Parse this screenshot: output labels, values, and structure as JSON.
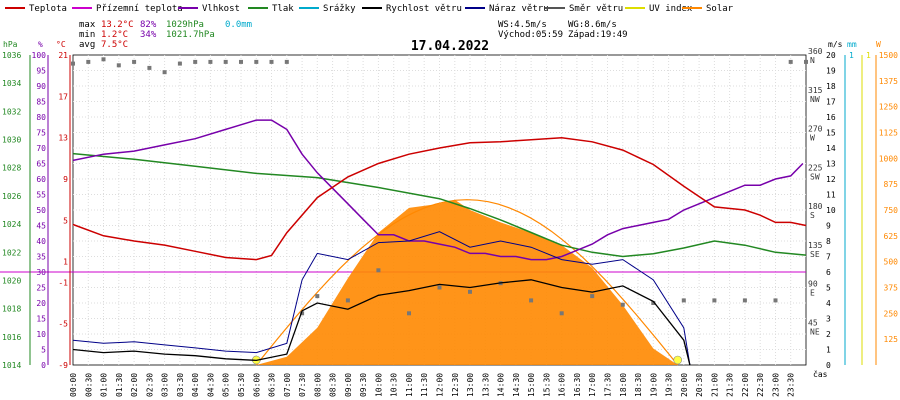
{
  "chart_data": {
    "type": "line",
    "title": "17.04.2022",
    "xlabel": "čas",
    "legend_placement": "top",
    "grid": true,
    "legend": [
      {
        "label": "Teplota",
        "color": "#cc0000"
      },
      {
        "label": "Přízemní teplota",
        "color": "#cc00cc"
      },
      {
        "label": "Vlhkost",
        "color": "#7700aa"
      },
      {
        "label": "Tlak",
        "color": "#228822"
      },
      {
        "label": "Srážky",
        "color": "#00aacc"
      },
      {
        "label": "Rychlost větru",
        "color": "#000000"
      },
      {
        "label": "Náraz větru",
        "color": "#000088"
      },
      {
        "label": "Směr větru",
        "color": "#555555"
      },
      {
        "label": "UV index",
        "color": "#dddd00"
      },
      {
        "label": "Solar",
        "color": "#ff8800"
      }
    ],
    "stats": {
      "max_label": "max",
      "max_temp": "13.2°C",
      "max_hum": "82%",
      "max_press": "1029hPa",
      "max_rain": "0.0mm",
      "min_label": "min",
      "min_temp": "1.2°C",
      "min_hum": "34%",
      "min_press": "1021.7hPa",
      "avg_label": "avg",
      "avg_temp": "7.5°C",
      "ws": "WS:4.5m/s",
      "wg": "WG:8.6m/s",
      "sunrise": "Východ:05:59",
      "sunset": "Západ:19:49"
    },
    "axes": {
      "hPa": {
        "title": "hPa",
        "range": [
          1014,
          1036
        ],
        "ticks": [
          "1036",
          "1034",
          "1032",
          "1030",
          "1028",
          "1026",
          "1024",
          "1022",
          "1020",
          "1018",
          "1016",
          "1014"
        ]
      },
      "percent": {
        "title": "%",
        "range": [
          0,
          100
        ],
        "ticks": [
          "100",
          "95",
          "90",
          "85",
          "80",
          "75",
          "70",
          "65",
          "60",
          "55",
          "50",
          "45",
          "40",
          "35",
          "30",
          "25",
          "20",
          "15",
          "10",
          "5",
          "0"
        ]
      },
      "celsius": {
        "title": "°C",
        "range": [
          -9,
          21
        ],
        "ticks": [
          "21",
          "17",
          "13",
          "9",
          "5",
          "1",
          "-1",
          "-5",
          "-9"
        ]
      },
      "ms": {
        "title": "m/s",
        "range": [
          0,
          20
        ],
        "ticks": [
          "20",
          "19",
          "18",
          "17",
          "16",
          "15",
          "14",
          "13",
          "12",
          "11",
          "10",
          "9",
          "8",
          "7",
          "6",
          "5",
          "4",
          "3",
          "2",
          "1",
          "0"
        ]
      },
      "direction": {
        "ticks": [
          {
            "value": "360",
            "label": "N"
          },
          {
            "value": "315",
            "label": "NW"
          },
          {
            "value": "270",
            "label": "W"
          },
          {
            "value": "225",
            "label": "SW"
          },
          {
            "value": "180",
            "label": "S"
          },
          {
            "value": "135",
            "label": "SE"
          },
          {
            "value": "90",
            "label": "E"
          },
          {
            "value": "45",
            "label": "NE"
          }
        ]
      },
      "mm": {
        "title": "mm",
        "top_label": "1"
      },
      "uv": {
        "top_label": "1"
      },
      "solar": {
        "title": "W",
        "range": [
          0,
          1500
        ],
        "ticks": [
          "1500",
          "1375",
          "1250",
          "1125",
          "1000",
          "875",
          "750",
          "625",
          "500",
          "375",
          "250",
          "125"
        ]
      }
    },
    "time_labels": [
      "00:00",
      "00:30",
      "01:00",
      "01:30",
      "02:00",
      "02:30",
      "03:00",
      "03:30",
      "04:00",
      "04:30",
      "05:00",
      "05:30",
      "06:00",
      "06:30",
      "07:00",
      "07:30",
      "08:00",
      "08:30",
      "09:00",
      "09:30",
      "10:00",
      "10:30",
      "11:00",
      "11:30",
      "12:00",
      "12:30",
      "13:00",
      "13:30",
      "14:00",
      "14:30",
      "15:00",
      "15:30",
      "16:00",
      "16:30",
      "17:00",
      "17:30",
      "18:00",
      "18:30",
      "19:00",
      "19:30",
      "20:00",
      "20:30",
      "21:00",
      "21:30",
      "22:00",
      "22:30",
      "23:00",
      "23:30"
    ],
    "series": [
      {
        "name": "Teplota",
        "unit": "°C",
        "color": "#cc0000",
        "x": [
          0,
          1,
          2,
          3,
          4,
          5,
          6,
          6.5,
          7,
          8,
          9,
          10,
          11,
          12,
          13,
          14,
          15,
          16,
          17,
          18,
          19,
          20,
          21,
          22,
          22.5,
          23,
          23.5,
          24
        ],
        "y": [
          4.6,
          3.5,
          3.0,
          2.6,
          2.0,
          1.4,
          1.2,
          1.6,
          3.8,
          7.2,
          9.2,
          10.5,
          11.4,
          12.0,
          12.5,
          12.6,
          12.8,
          13.0,
          12.6,
          11.8,
          10.4,
          8.3,
          6.3,
          6.0,
          5.5,
          4.8,
          4.8,
          4.5
        ]
      },
      {
        "name": "Vlhkost",
        "unit": "%",
        "color": "#7700aa",
        "x": [
          0,
          1,
          2,
          3,
          4,
          5,
          6,
          6.5,
          7,
          7.5,
          8,
          8.5,
          9,
          9.5,
          10,
          10.5,
          11,
          11.5,
          12,
          12.5,
          13,
          13.5,
          14,
          14.5,
          15,
          15.5,
          16,
          16.5,
          17,
          17.5,
          18,
          18.5,
          19,
          19.5,
          20,
          20.5,
          21,
          21.5,
          22,
          22.5,
          23,
          23.5,
          23.9
        ],
        "y": [
          66,
          68,
          69,
          71,
          73,
          76,
          79,
          79,
          76,
          68,
          62,
          57,
          52,
          47,
          42,
          42,
          40,
          40,
          39,
          38,
          36,
          36,
          35,
          35,
          34,
          34,
          35,
          37,
          39,
          42,
          44,
          45,
          46,
          47,
          50,
          52,
          54,
          56,
          58,
          58,
          60,
          61,
          65
        ]
      },
      {
        "name": "Tlak",
        "unit": "hPa",
        "color": "#228822",
        "x": [
          0,
          2,
          4,
          6,
          8,
          10,
          12,
          13,
          14,
          15,
          16,
          17,
          18,
          19,
          20,
          21,
          22,
          23,
          24
        ],
        "y": [
          1029.0,
          1028.6,
          1028.1,
          1027.6,
          1027.3,
          1026.6,
          1025.8,
          1025.1,
          1024.3,
          1023.4,
          1022.5,
          1022.0,
          1021.7,
          1021.9,
          1022.3,
          1022.8,
          1022.5,
          1022.0,
          1021.8
        ]
      },
      {
        "name": "Rychlost větru",
        "unit": "m/s",
        "color": "#000000",
        "x": [
          0,
          1,
          2,
          3,
          4,
          5,
          6,
          7,
          7.5,
          8,
          9,
          10,
          11,
          12,
          13,
          14,
          15,
          16,
          17,
          18,
          19,
          20,
          20.2
        ],
        "y": [
          1.0,
          0.8,
          0.9,
          0.7,
          0.6,
          0.4,
          0.3,
          0.7,
          3.5,
          4.0,
          3.6,
          4.5,
          4.8,
          5.2,
          5.0,
          5.3,
          5.5,
          5.0,
          4.7,
          5.1,
          4.1,
          1.6,
          0.0
        ]
      },
      {
        "name": "Náraz větru",
        "unit": "m/s",
        "color": "#000088",
        "x": [
          0,
          1,
          2,
          3,
          4,
          5,
          6,
          7,
          7.5,
          8,
          9,
          10,
          11,
          12,
          13,
          14,
          15,
          16,
          17,
          18,
          19,
          20,
          20.2
        ],
        "y": [
          1.6,
          1.4,
          1.5,
          1.3,
          1.1,
          0.9,
          0.8,
          1.4,
          5.5,
          7.2,
          6.8,
          7.9,
          8.0,
          8.6,
          7.6,
          8.0,
          7.6,
          6.8,
          6.5,
          6.8,
          5.5,
          2.4,
          0.0
        ]
      },
      {
        "name": "Solar",
        "unit": "W",
        "color": "#ff8800",
        "x": [
          6.0,
          7.0,
          8,
          9,
          10,
          11,
          12,
          12.5,
          13,
          14,
          15,
          16,
          17,
          18,
          19,
          19.8
        ],
        "y": [
          0,
          40,
          180,
          420,
          640,
          760,
          780,
          800,
          750,
          690,
          640,
          580,
          470,
          290,
          80,
          0
        ]
      },
      {
        "name": "Směr větru",
        "unit": "°",
        "color": "#555555",
        "x": [
          0,
          0.5,
          1,
          1.5,
          2,
          2.5,
          3,
          3.5,
          4,
          4.5,
          5,
          5.5,
          6,
          6.5,
          7,
          7.5,
          8,
          9,
          10,
          11,
          12,
          13,
          14,
          15,
          16,
          17,
          18,
          19,
          20,
          21,
          22,
          23,
          23.5,
          24
        ],
        "y": [
          350,
          352,
          355,
          348,
          352,
          345,
          340,
          350,
          352,
          352,
          352,
          352,
          352,
          352,
          352,
          60,
          80,
          75,
          110,
          60,
          90,
          85,
          95,
          75,
          60,
          80,
          70,
          72,
          75,
          75,
          75,
          75,
          352,
          352
        ]
      }
    ]
  }
}
